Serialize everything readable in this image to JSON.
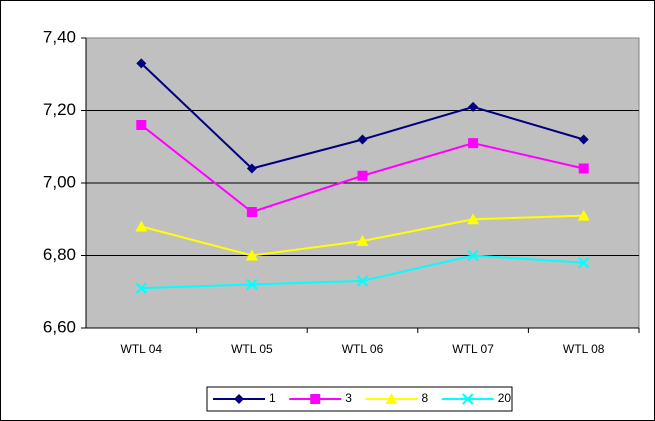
{
  "chart_data": {
    "type": "line",
    "categories": [
      "WTL 04",
      "WTL 05",
      "WTL 06",
      "WTL 07",
      "WTL 08"
    ],
    "series": [
      {
        "name": "1",
        "color": "#000080",
        "marker": "diamond",
        "values": [
          7.33,
          7.04,
          7.12,
          7.21,
          7.12
        ]
      },
      {
        "name": "3",
        "color": "#FF00FF",
        "marker": "square",
        "values": [
          7.16,
          6.92,
          7.02,
          7.11,
          7.04
        ]
      },
      {
        "name": "8",
        "color": "#FFFF00",
        "marker": "triangle",
        "values": [
          6.88,
          6.8,
          6.84,
          6.9,
          6.91
        ]
      },
      {
        "name": "20",
        "color": "#00FFFF",
        "marker": "x",
        "values": [
          6.71,
          6.72,
          6.73,
          6.8,
          6.78
        ]
      }
    ],
    "ylim": [
      6.6,
      7.4
    ],
    "yticks": [
      {
        "value": 6.6,
        "label": "6,60"
      },
      {
        "value": 6.8,
        "label": "6,80"
      },
      {
        "value": 7.0,
        "label": "7,00"
      },
      {
        "value": 7.2,
        "label": "7,20"
      },
      {
        "value": 7.4,
        "label": "7,40"
      }
    ],
    "grid": true,
    "legend": "bottom",
    "plot_background": "#C0C0C0"
  }
}
